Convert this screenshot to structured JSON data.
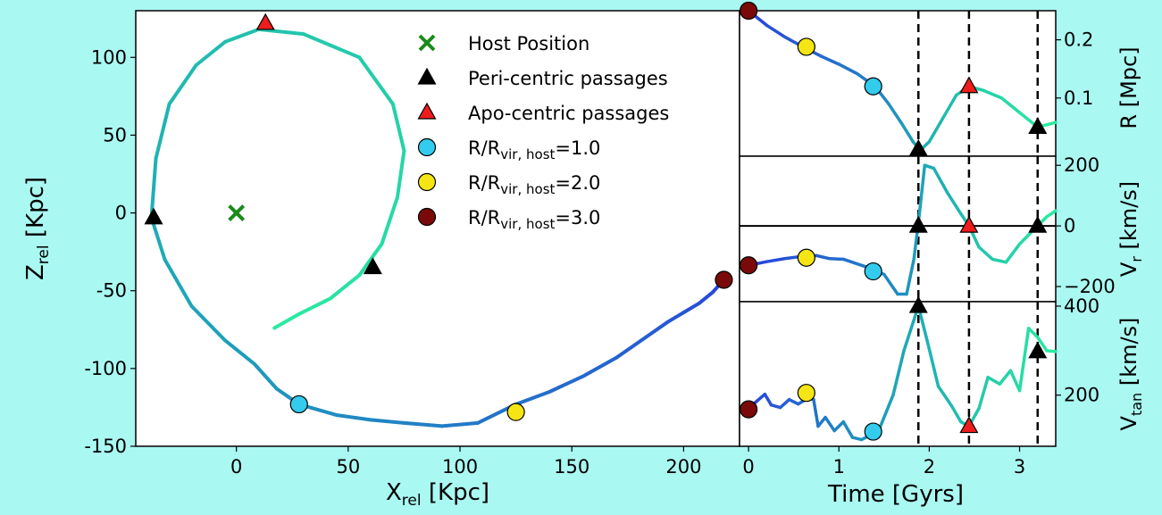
{
  "colors": {
    "background": "#aaf8f2",
    "apo": "#ee1c1c",
    "peri": "#000000",
    "host": "#1a8a1a",
    "r1": "#33ccee",
    "r2": "#f5e515",
    "r3": "#7a0a0a"
  },
  "chart_data": [
    {
      "type": "line",
      "xlabel": "X",
      "xlabel_sub": "rel",
      "xlabel_unit": "[Kpc]",
      "ylabel": "Z",
      "ylabel_sub": "rel",
      "ylabel_unit": "[Kpc]",
      "xlim": [
        -45,
        225
      ],
      "ylim": [
        -150,
        130
      ],
      "xticks": [
        0,
        50,
        100,
        150,
        200
      ],
      "yticks": [
        -150,
        -100,
        -50,
        0,
        50,
        100
      ],
      "orbit": [
        [
          218,
          -43
        ],
        [
          213,
          -51
        ],
        [
          207,
          -58
        ],
        [
          200,
          -64
        ],
        [
          193,
          -70
        ],
        [
          183,
          -80
        ],
        [
          170,
          -93
        ],
        [
          155,
          -105
        ],
        [
          140,
          -115
        ],
        [
          125,
          -123
        ],
        [
          108,
          -135
        ],
        [
          92,
          -137
        ],
        [
          75,
          -135
        ],
        [
          60,
          -133
        ],
        [
          45,
          -130
        ],
        [
          28,
          -123
        ],
        [
          18,
          -113
        ],
        [
          8,
          -97
        ],
        [
          -5,
          -82
        ],
        [
          -20,
          -60
        ],
        [
          -32,
          -30
        ],
        [
          -38,
          -3
        ],
        [
          -36,
          35
        ],
        [
          -30,
          70
        ],
        [
          -18,
          95
        ],
        [
          -5,
          110
        ],
        [
          10,
          118
        ],
        [
          30,
          115
        ],
        [
          55,
          100
        ],
        [
          70,
          70
        ],
        [
          75,
          40
        ],
        [
          72,
          10
        ],
        [
          65,
          -20
        ],
        [
          55,
          -40
        ],
        [
          42,
          -55
        ],
        [
          28,
          -65
        ],
        [
          17,
          -74
        ]
      ],
      "markers": {
        "host": [
          0,
          0
        ],
        "peri": [
          [
            -37,
            -3
          ],
          [
            61,
            -35
          ]
        ],
        "apo": [
          [
            13,
            122
          ]
        ],
        "r1": [
          [
            28,
            -123
          ]
        ],
        "r2": [
          [
            125,
            -128
          ]
        ],
        "r3": [
          [
            218,
            -43
          ]
        ]
      },
      "legend": [
        {
          "key": "host",
          "label": "Host Position"
        },
        {
          "key": "peri",
          "label": "Peri-centric passages"
        },
        {
          "key": "apo",
          "label": "Apo-centric passages"
        },
        {
          "key": "r1",
          "label": "R/R",
          "sub": "vir, host",
          "tail": "=1.0"
        },
        {
          "key": "r2",
          "label": "R/R",
          "sub": "vir, host",
          "tail": "=2.0"
        },
        {
          "key": "r3",
          "label": "R/R",
          "sub": "vir, host",
          "tail": "=3.0"
        }
      ],
      "legend_position": "upper-right"
    },
    {
      "type": "line",
      "xlabel": "Time [Gyrs]",
      "xlim": [
        -0.1,
        3.4
      ],
      "xticks": [
        0,
        1,
        2,
        3
      ],
      "vlines": [
        1.88,
        2.44,
        3.2
      ],
      "panels": [
        {
          "ylabel": "R [Mpc]",
          "ylim": [
            0.0,
            0.25
          ],
          "yticks": [
            0.1,
            0.2
          ],
          "ytick_labels": [
            "0.1",
            "0.2"
          ],
          "series": [
            [
              0,
              0.25
            ],
            [
              0.2,
              0.225
            ],
            [
              0.4,
              0.205
            ],
            [
              0.6,
              0.188
            ],
            [
              0.8,
              0.172
            ],
            [
              1.0,
              0.158
            ],
            [
              1.2,
              0.142
            ],
            [
              1.4,
              0.12
            ],
            [
              1.55,
              0.09
            ],
            [
              1.7,
              0.055
            ],
            [
              1.82,
              0.025
            ],
            [
              1.9,
              0.01
            ],
            [
              2.0,
              0.025
            ],
            [
              2.15,
              0.065
            ],
            [
              2.3,
              0.105
            ],
            [
              2.44,
              0.12
            ],
            [
              2.6,
              0.113
            ],
            [
              2.8,
              0.1
            ],
            [
              3.0,
              0.075
            ],
            [
              3.2,
              0.05
            ],
            [
              3.4,
              0.058
            ]
          ],
          "markers": {
            "r3": [
              [
                0,
                0.25
              ]
            ],
            "r2": [
              [
                0.64,
                0.188
              ]
            ],
            "r1": [
              [
                1.38,
                0.12
              ]
            ],
            "apo": [
              [
                2.44,
                0.12
              ]
            ],
            "peri": [
              [
                1.88,
                0.012
              ],
              [
                3.2,
                0.05
              ]
            ]
          }
        },
        {
          "ylabel": "V",
          "ylabel_sub": "r",
          "ylabel_unit": "[km/s]",
          "ylim": [
            -250,
            230
          ],
          "yticks": [
            -200,
            0,
            200
          ],
          "ytick_labels": [
            "−200",
            "0",
            "200"
          ],
          "zero_line": true,
          "series": [
            [
              0,
              -130
            ],
            [
              0.2,
              -118
            ],
            [
              0.4,
              -108
            ],
            [
              0.6,
              -100
            ],
            [
              0.75,
              -98
            ],
            [
              0.9,
              -108
            ],
            [
              1.05,
              -110
            ],
            [
              1.2,
              -125
            ],
            [
              1.35,
              -140
            ],
            [
              1.5,
              -160
            ],
            [
              1.65,
              -225
            ],
            [
              1.75,
              -225
            ],
            [
              1.83,
              -110
            ],
            [
              1.88,
              10
            ],
            [
              1.95,
              200
            ],
            [
              2.05,
              190
            ],
            [
              2.2,
              110
            ],
            [
              2.35,
              40
            ],
            [
              2.44,
              0
            ],
            [
              2.55,
              -70
            ],
            [
              2.7,
              -110
            ],
            [
              2.85,
              -120
            ],
            [
              3.0,
              -60
            ],
            [
              3.1,
              -30
            ],
            [
              3.2,
              0
            ],
            [
              3.3,
              30
            ],
            [
              3.4,
              50
            ]
          ],
          "markers": {
            "r3": [
              [
                0,
                -130
              ]
            ],
            "r2": [
              [
                0.64,
                -105
              ]
            ],
            "r1": [
              [
                1.38,
                -150
              ]
            ],
            "apo": [
              [
                2.44,
                0
              ]
            ],
            "peri": [
              [
                1.88,
                0
              ],
              [
                3.2,
                0
              ]
            ]
          }
        },
        {
          "ylabel": "V",
          "ylabel_sub": "tan",
          "ylabel_unit": "[km/s]",
          "ylim": [
            85,
            410
          ],
          "yticks": [
            200,
            400
          ],
          "ytick_labels": [
            "200",
            "400"
          ],
          "series": [
            [
              0,
              170
            ],
            [
              0.1,
              188
            ],
            [
              0.18,
              202
            ],
            [
              0.25,
              178
            ],
            [
              0.35,
              172
            ],
            [
              0.45,
              190
            ],
            [
              0.55,
              180
            ],
            [
              0.65,
              192
            ],
            [
              0.72,
              190
            ],
            [
              0.77,
              130
            ],
            [
              0.85,
              150
            ],
            [
              0.95,
              120
            ],
            [
              1.05,
              140
            ],
            [
              1.15,
              105
            ],
            [
              1.25,
              100
            ],
            [
              1.35,
              110
            ],
            [
              1.45,
              125
            ],
            [
              1.6,
              200
            ],
            [
              1.72,
              300
            ],
            [
              1.88,
              400
            ],
            [
              1.98,
              320
            ],
            [
              2.1,
              220
            ],
            [
              2.25,
              175
            ],
            [
              2.35,
              140
            ],
            [
              2.44,
              130
            ],
            [
              2.55,
              170
            ],
            [
              2.65,
              240
            ],
            [
              2.78,
              225
            ],
            [
              2.9,
              255
            ],
            [
              3.0,
              210
            ],
            [
              3.1,
              350
            ],
            [
              3.2,
              330
            ],
            [
              3.3,
              300
            ],
            [
              3.4,
              298
            ]
          ],
          "markers": {
            "r3": [
              [
                0,
                168
              ]
            ],
            "r2": [
              [
                0.64,
                205
              ]
            ],
            "r1": [
              [
                1.38,
                118
              ]
            ],
            "apo": [
              [
                2.44,
                130
              ]
            ],
            "peri": [
              [
                1.88,
                400
              ],
              [
                3.2,
                298
              ]
            ]
          }
        }
      ]
    }
  ]
}
